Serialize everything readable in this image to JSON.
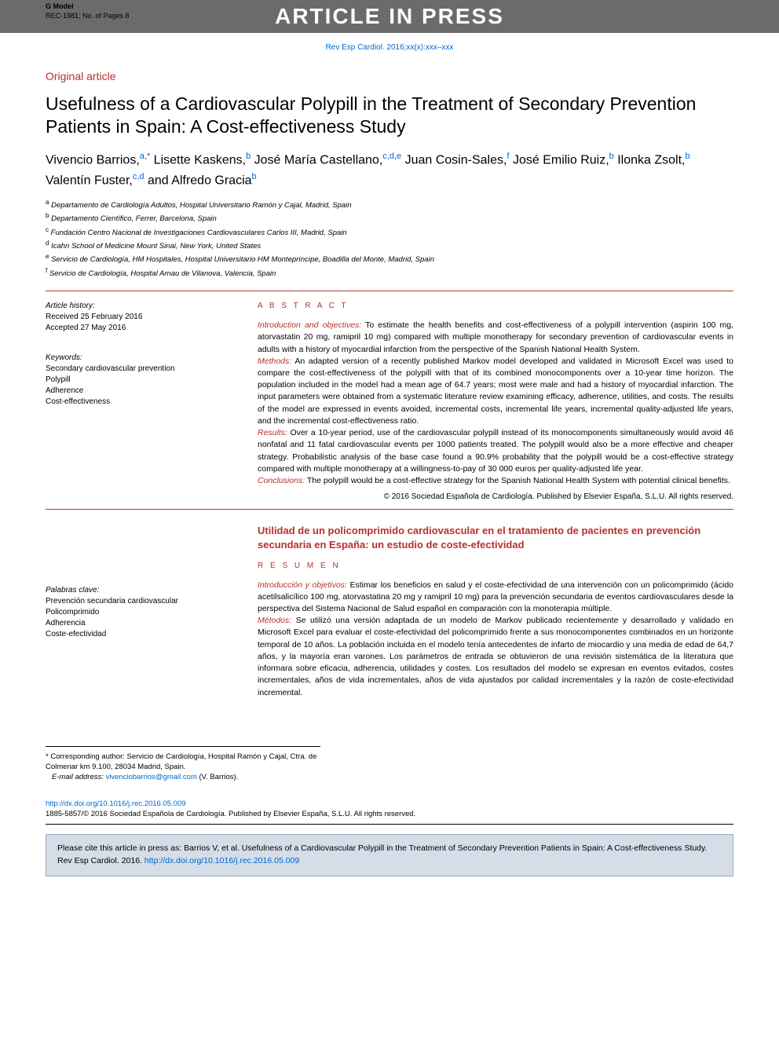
{
  "header": {
    "gmodel": "G Model",
    "gmodel_sub": "REC-1981; No. of Pages 8",
    "watermark": "ARTICLE IN PRESS",
    "citation_link": "Rev Esp Cardiol. 2016;xx(x):xxx–xxx"
  },
  "article": {
    "type": "Original article",
    "title": "Usefulness of a Cardiovascular Polypill in the Treatment of Secondary Prevention Patients in Spain: A Cost-effectiveness Study",
    "authors_html": "Vivencio Barrios,<sup>a,*</sup> Lisette Kaskens,<sup>b</sup> José María Castellano,<sup>c,d,e</sup> Juan Cosin-Sales,<sup>f</sup> José Emilio Ruiz,<sup>b</sup> Ilonka Zsolt,<sup>b</sup> Valentín Fuster,<sup>c,d</sup> and Alfredo Gracia<sup>b</sup>",
    "affiliations": [
      {
        "sup": "a",
        "text": "Departamento de Cardiología Adultos, Hospital Universitario Ramón y Cajal, Madrid, Spain"
      },
      {
        "sup": "b",
        "text": "Departamento Científico, Ferrer, Barcelona, Spain"
      },
      {
        "sup": "c",
        "text": "Fundación Centro Nacional de Investigaciones Cardiovasculares Carlos III, Madrid, Spain"
      },
      {
        "sup": "d",
        "text": "Icahn School of Medicine Mount Sinai, New York, United States"
      },
      {
        "sup": "e",
        "text": "Servicio de Cardiología, HM Hospitales, Hospital Universitario HM Montepríncipe, Boadilla del Monte, Madrid, Spain"
      },
      {
        "sup": "f",
        "text": "Servicio de Cardiología, Hospital Arnau de Vilanova, Valencia, Spain"
      }
    ]
  },
  "history": {
    "label": "Article history:",
    "received": "Received 25 February 2016",
    "accepted": "Accepted 27 May 2016"
  },
  "keywords_en": {
    "label": "Keywords:",
    "items": [
      "Secondary cardiovascular prevention",
      "Polypill",
      "Adherence",
      "Cost-effectiveness"
    ]
  },
  "abstract_en": {
    "heading": "A B S T R A C T",
    "sections": {
      "intro_label": "Introduction and objectives:",
      "intro": " To estimate the health benefits and cost-effectiveness of a polypill intervention (aspirin 100 mg, atorvastatin 20 mg, ramipril 10 mg) compared with multiple monotherapy for secondary prevention of cardiovascular events in adults with a history of myocardial infarction from the perspective of the Spanish National Health System.",
      "methods_label": "Methods:",
      "methods": " An adapted version of a recently published Markov model developed and validated in Microsoft Excel was used to compare the cost-effectiveness of the polypill with that of its combined monocomponents over a 10-year time horizon. The population included in the model had a mean age of 64.7 years; most were male and had a history of myocardial infarction. The input parameters were obtained from a systematic literature review examining efficacy, adherence, utilities, and costs. The results of the model are expressed in events avoided, incremental costs, incremental life years, incremental quality-adjusted life years, and the incremental cost-effectiveness ratio.",
      "results_label": "Results:",
      "results": " Over a 10-year period, use of the cardiovascular polypill instead of its monocomponents simultaneously would avoid 46 nonfatal and 11 fatal cardiovascular events per 1000 patients treated. The polypill would also be a more effective and cheaper strategy. Probabilistic analysis of the base case found a 90.9% probability that the polypill would be a cost-effective strategy compared with multiple monotherapy at a willingness-to-pay of 30 000 euros per quality-adjusted life year.",
      "conclusions_label": "Conclusions:",
      "conclusions": " The polypill would be a cost-effective strategy for the Spanish National Health System with potential clinical benefits."
    },
    "copyright": "© 2016 Sociedad Española de Cardiología. Published by Elsevier España, S.L.U. All rights reserved."
  },
  "spanish": {
    "title": "Utilidad de un policomprimido cardiovascular en el tratamiento de pacientes en prevención secundaria en España: un estudio de coste-efectividad",
    "heading": "R E S U M E N",
    "keywords_label": "Palabras clave:",
    "keywords": [
      "Prevención secundaria cardiovascular",
      "Policomprimido",
      "Adherencia",
      "Coste-efectividad"
    ],
    "intro_label": "Introducción y objetivos:",
    "intro": " Estimar los beneficios en salud y el coste-efectividad de una intervención con un policomprimido (ácido acetilsalicílico 100 mg, atorvastatina 20 mg y ramipril 10 mg) para la prevención secundaria de eventos cardiovasculares desde la perspectiva del Sistema Nacional de Salud español en comparación con la monoterapia múltiple.",
    "methods_label": "Métodos:",
    "methods": " Se utilizó una versión adaptada de un modelo de Markov publicado recientemente y desarrollado y validado en Microsoft Excel para evaluar el coste-efectividad del policomprimido frente a sus monocomponentes combinados en un horizonte temporal de 10 años. La población incluida en el modelo tenía antecedentes de infarto de miocardio y una media de edad de 64,7 años, y la mayoría eran varones. Los parámetros de entrada se obtuvieron de una revisión sistemática de la literatura que informara sobre eficacia, adherencia, utilidades y costes. Los resultados del modelo se expresan en eventos evitados, costes incrementales, años de vida incrementales, años de vida ajustados por calidad incrementales y la razón de coste-efectividad incremental."
  },
  "footer": {
    "corresponding_marker": "*",
    "corresponding": "Corresponding author: Servicio de Cardiología, Hospital Ramón y Cajal, Ctra. de Colmenar km 9.100, 28034 Madrid, Spain.",
    "email_label": "E-mail address:",
    "email": "vivenciobarrios@gmail.com",
    "email_name": " (V. Barrios).",
    "doi_link": "http://dx.doi.org/10.1016/j.rec.2016.05.009",
    "issn_line": "1885-5857/© 2016 Sociedad Española de Cardiología. Published by Elsevier España, S.L.U. All rights reserved.",
    "cite_text": "Please cite this article in press as: Barrios V, et al. Usefulness of a Cardiovascular Polypill in the Treatment of Secondary Prevention Patients in Spain: A Cost-effectiveness Study. Rev Esp Cardiol. 2016. ",
    "cite_link": "http://dx.doi.org/10.1016/j.rec.2016.05.009"
  },
  "colors": {
    "accent_red": "#b7312c",
    "link_blue": "#0066cc",
    "header_gray": "#6b6b6b",
    "cite_box_bg": "#d4dde8",
    "cite_box_border": "#9aabc0"
  }
}
